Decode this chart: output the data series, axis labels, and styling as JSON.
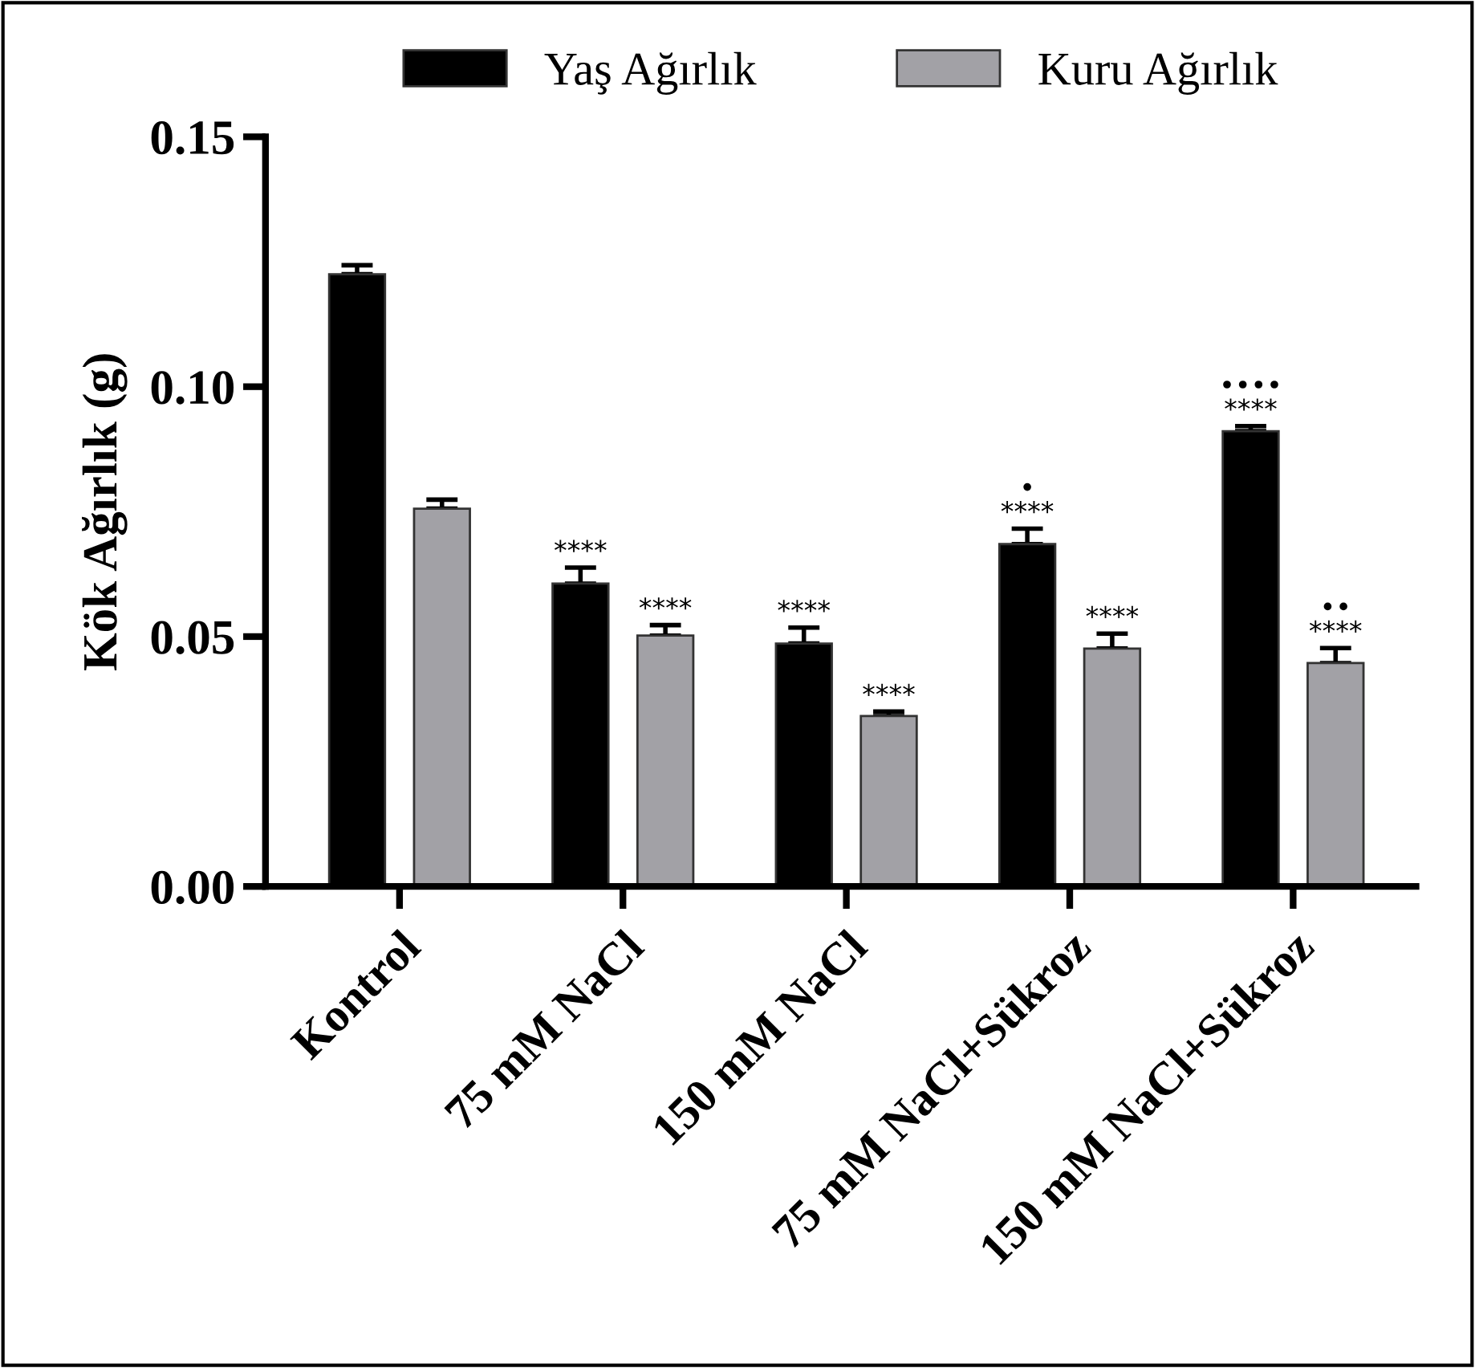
{
  "chart_data": {
    "type": "bar",
    "ylabel": "Kök Ağırlık (g)",
    "categories": [
      "Kontrol",
      "75 mM NaCl",
      "150 mM NaCl",
      "75 mM NaCl+Sükroz",
      "150 mM NaCl+Sükroz"
    ],
    "series": [
      {
        "name": "Yaş Ağırlık",
        "color": "#000000",
        "values": [
          0.1225,
          0.0606,
          0.0486,
          0.0685,
          0.0911
        ],
        "errors": [
          0.0018,
          0.0032,
          0.0032,
          0.0031,
          0.001
        ],
        "value_labels": [
          null,
          "****",
          "****",
          "•\n****",
          "••••\n****"
        ]
      },
      {
        "name": "Kuru Ağırlık",
        "color": "#a2a1a6",
        "values": [
          0.0756,
          0.0502,
          0.0341,
          0.0476,
          0.0447
        ],
        "errors": [
          0.0018,
          0.0021,
          0.0009,
          0.003,
          0.003
        ],
        "value_labels": [
          null,
          "****",
          "****",
          "****",
          "••\n****"
        ]
      }
    ],
    "ylim": [
      0,
      0.15
    ],
    "yticks": [
      {
        "value": 0,
        "label": "0.00"
      },
      {
        "value": 0.05,
        "label": "0.05"
      },
      {
        "value": 0.1,
        "label": "0.10"
      },
      {
        "value": 0.15,
        "label": "0.15"
      }
    ],
    "legend": "top",
    "grid": false
  }
}
